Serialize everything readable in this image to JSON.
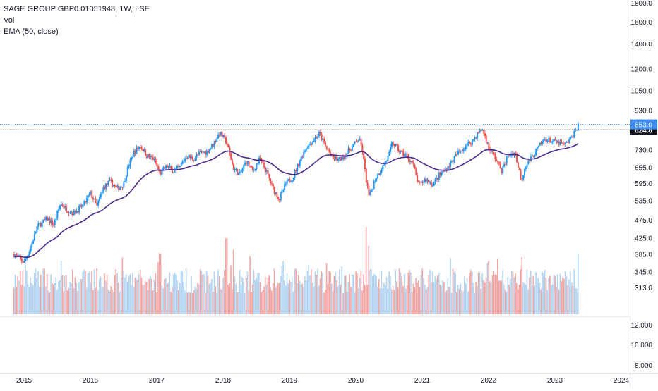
{
  "legend": {
    "title": "SAGE GROUP GBP0.01051948, 1W, LSE",
    "vol": "Vol",
    "ema": "EMA (50, close)"
  },
  "colors": {
    "up": "#2196f3",
    "down": "#ef5350",
    "up_vol": "#b3d4f0",
    "down_vol": "#f2a5a3",
    "ema": "#4a2a8c",
    "hline": "#131722",
    "last_price_bg": "#3d8cf2",
    "hline_label_bg": "#131722",
    "grid": "#f0f3fa",
    "axis_text": "#131722"
  },
  "chart_data": {
    "type": "candlestick",
    "price_axis": {
      "scale": "log",
      "ylim": [
        330,
        1800
      ],
      "ticks": [
        "1800.0",
        "1600.0",
        "1400.0",
        "1200.0",
        "1050.0",
        "930.0",
        "730.0",
        "655.0",
        "595.0",
        "535.0",
        "475.0",
        "425.0",
        "385.0",
        "345.0",
        "313.0"
      ]
    },
    "volume_axis": {
      "scale": "log",
      "ticks": [
        "12.000",
        "10.000",
        "8.000"
      ]
    },
    "x_axis": {
      "start": 2014.85,
      "end": 2024.1,
      "ticks": [
        "2015",
        "2016",
        "2017",
        "2018",
        "2019",
        "2020",
        "2021",
        "2022",
        "2023",
        "2024"
      ]
    },
    "last_price_label": "853.0",
    "horizontal_line": {
      "value": 824.8,
      "label": "824.8"
    },
    "price_path": [
      [
        2014.85,
        385
      ],
      [
        2015.0,
        365
      ],
      [
        2015.1,
        400
      ],
      [
        2015.2,
        455
      ],
      [
        2015.35,
        478
      ],
      [
        2015.45,
        460
      ],
      [
        2015.55,
        525
      ],
      [
        2015.65,
        505
      ],
      [
        2015.75,
        495
      ],
      [
        2015.9,
        520
      ],
      [
        2016.0,
        560
      ],
      [
        2016.1,
        515
      ],
      [
        2016.2,
        580
      ],
      [
        2016.3,
        600
      ],
      [
        2016.4,
        575
      ],
      [
        2016.5,
        590
      ],
      [
        2016.55,
        640
      ],
      [
        2016.65,
        715
      ],
      [
        2016.75,
        750
      ],
      [
        2016.85,
        705
      ],
      [
        2016.95,
        690
      ],
      [
        2017.05,
        630
      ],
      [
        2017.15,
        660
      ],
      [
        2017.25,
        640
      ],
      [
        2017.35,
        655
      ],
      [
        2017.45,
        705
      ],
      [
        2017.55,
        690
      ],
      [
        2017.65,
        715
      ],
      [
        2017.75,
        720
      ],
      [
        2017.85,
        755
      ],
      [
        2017.95,
        810
      ],
      [
        2018.05,
        765
      ],
      [
        2018.15,
        655
      ],
      [
        2018.25,
        625
      ],
      [
        2018.35,
        680
      ],
      [
        2018.45,
        640
      ],
      [
        2018.55,
        690
      ],
      [
        2018.65,
        640
      ],
      [
        2018.75,
        575
      ],
      [
        2018.85,
        540
      ],
      [
        2018.95,
        595
      ],
      [
        2019.05,
        615
      ],
      [
        2019.15,
        680
      ],
      [
        2019.25,
        740
      ],
      [
        2019.35,
        770
      ],
      [
        2019.45,
        805
      ],
      [
        2019.55,
        740
      ],
      [
        2019.65,
        695
      ],
      [
        2019.75,
        685
      ],
      [
        2019.85,
        710
      ],
      [
        2019.95,
        745
      ],
      [
        2020.05,
        780
      ],
      [
        2020.1,
        725
      ],
      [
        2020.15,
        615
      ],
      [
        2020.2,
        545
      ],
      [
        2020.3,
        615
      ],
      [
        2020.4,
        655
      ],
      [
        2020.5,
        705
      ],
      [
        2020.55,
        765
      ],
      [
        2020.65,
        725
      ],
      [
        2020.75,
        705
      ],
      [
        2020.85,
        675
      ],
      [
        2020.95,
        585
      ],
      [
        2021.05,
        610
      ],
      [
        2021.15,
        590
      ],
      [
        2021.25,
        620
      ],
      [
        2021.35,
        645
      ],
      [
        2021.45,
        680
      ],
      [
        2021.55,
        720
      ],
      [
        2021.65,
        745
      ],
      [
        2021.75,
        770
      ],
      [
        2021.85,
        810
      ],
      [
        2021.9,
        830
      ],
      [
        2021.95,
        790
      ],
      [
        2022.0,
        740
      ],
      [
        2022.1,
        695
      ],
      [
        2022.2,
        640
      ],
      [
        2022.3,
        705
      ],
      [
        2022.4,
        720
      ],
      [
        2022.45,
        650
      ],
      [
        2022.5,
        610
      ],
      [
        2022.55,
        660
      ],
      [
        2022.65,
        695
      ],
      [
        2022.75,
        740
      ],
      [
        2022.85,
        780
      ],
      [
        2022.95,
        770
      ],
      [
        2023.05,
        760
      ],
      [
        2023.15,
        750
      ],
      [
        2023.25,
        785
      ],
      [
        2023.3,
        815
      ],
      [
        2023.35,
        853
      ]
    ],
    "volume_spikes": [
      [
        2015.3,
        0.6
      ],
      [
        2016.1,
        0.6
      ],
      [
        2017.05,
        0.8
      ],
      [
        2018.05,
        1.0
      ],
      [
        2018.15,
        0.85
      ],
      [
        2018.9,
        0.7
      ],
      [
        2020.15,
        1.15
      ],
      [
        2020.2,
        0.9
      ],
      [
        2021.0,
        0.6
      ],
      [
        2022.0,
        0.7
      ],
      [
        2022.5,
        0.75
      ],
      [
        2023.35,
        0.8
      ]
    ]
  }
}
